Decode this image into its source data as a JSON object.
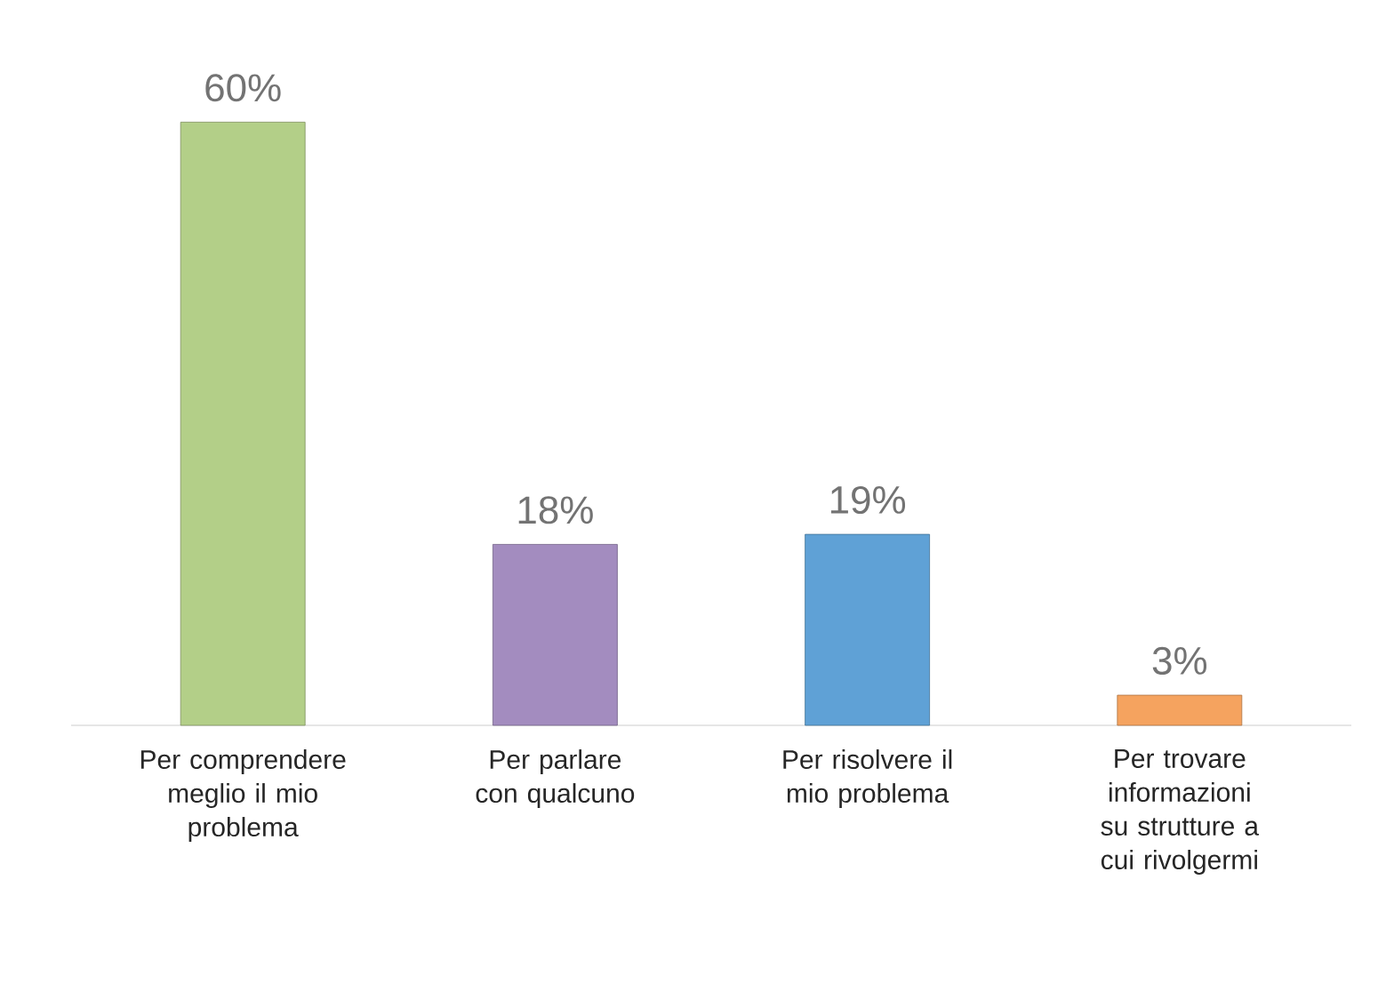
{
  "chart_data": {
    "type": "bar",
    "categories": [
      "Per comprendere meglio il mio problema",
      "Per parlare con qualcuno",
      "Per risolvere il mio problema",
      "Per trovare informazioni su strutture a cui rivolgermi"
    ],
    "values": [
      60,
      18,
      19,
      3
    ],
    "colors": [
      "#b3cf88",
      "#a38cbf",
      "#5fa1d6",
      "#f5a35f"
    ],
    "value_labels": [
      "60%",
      "18%",
      "19%",
      "3%"
    ]
  }
}
